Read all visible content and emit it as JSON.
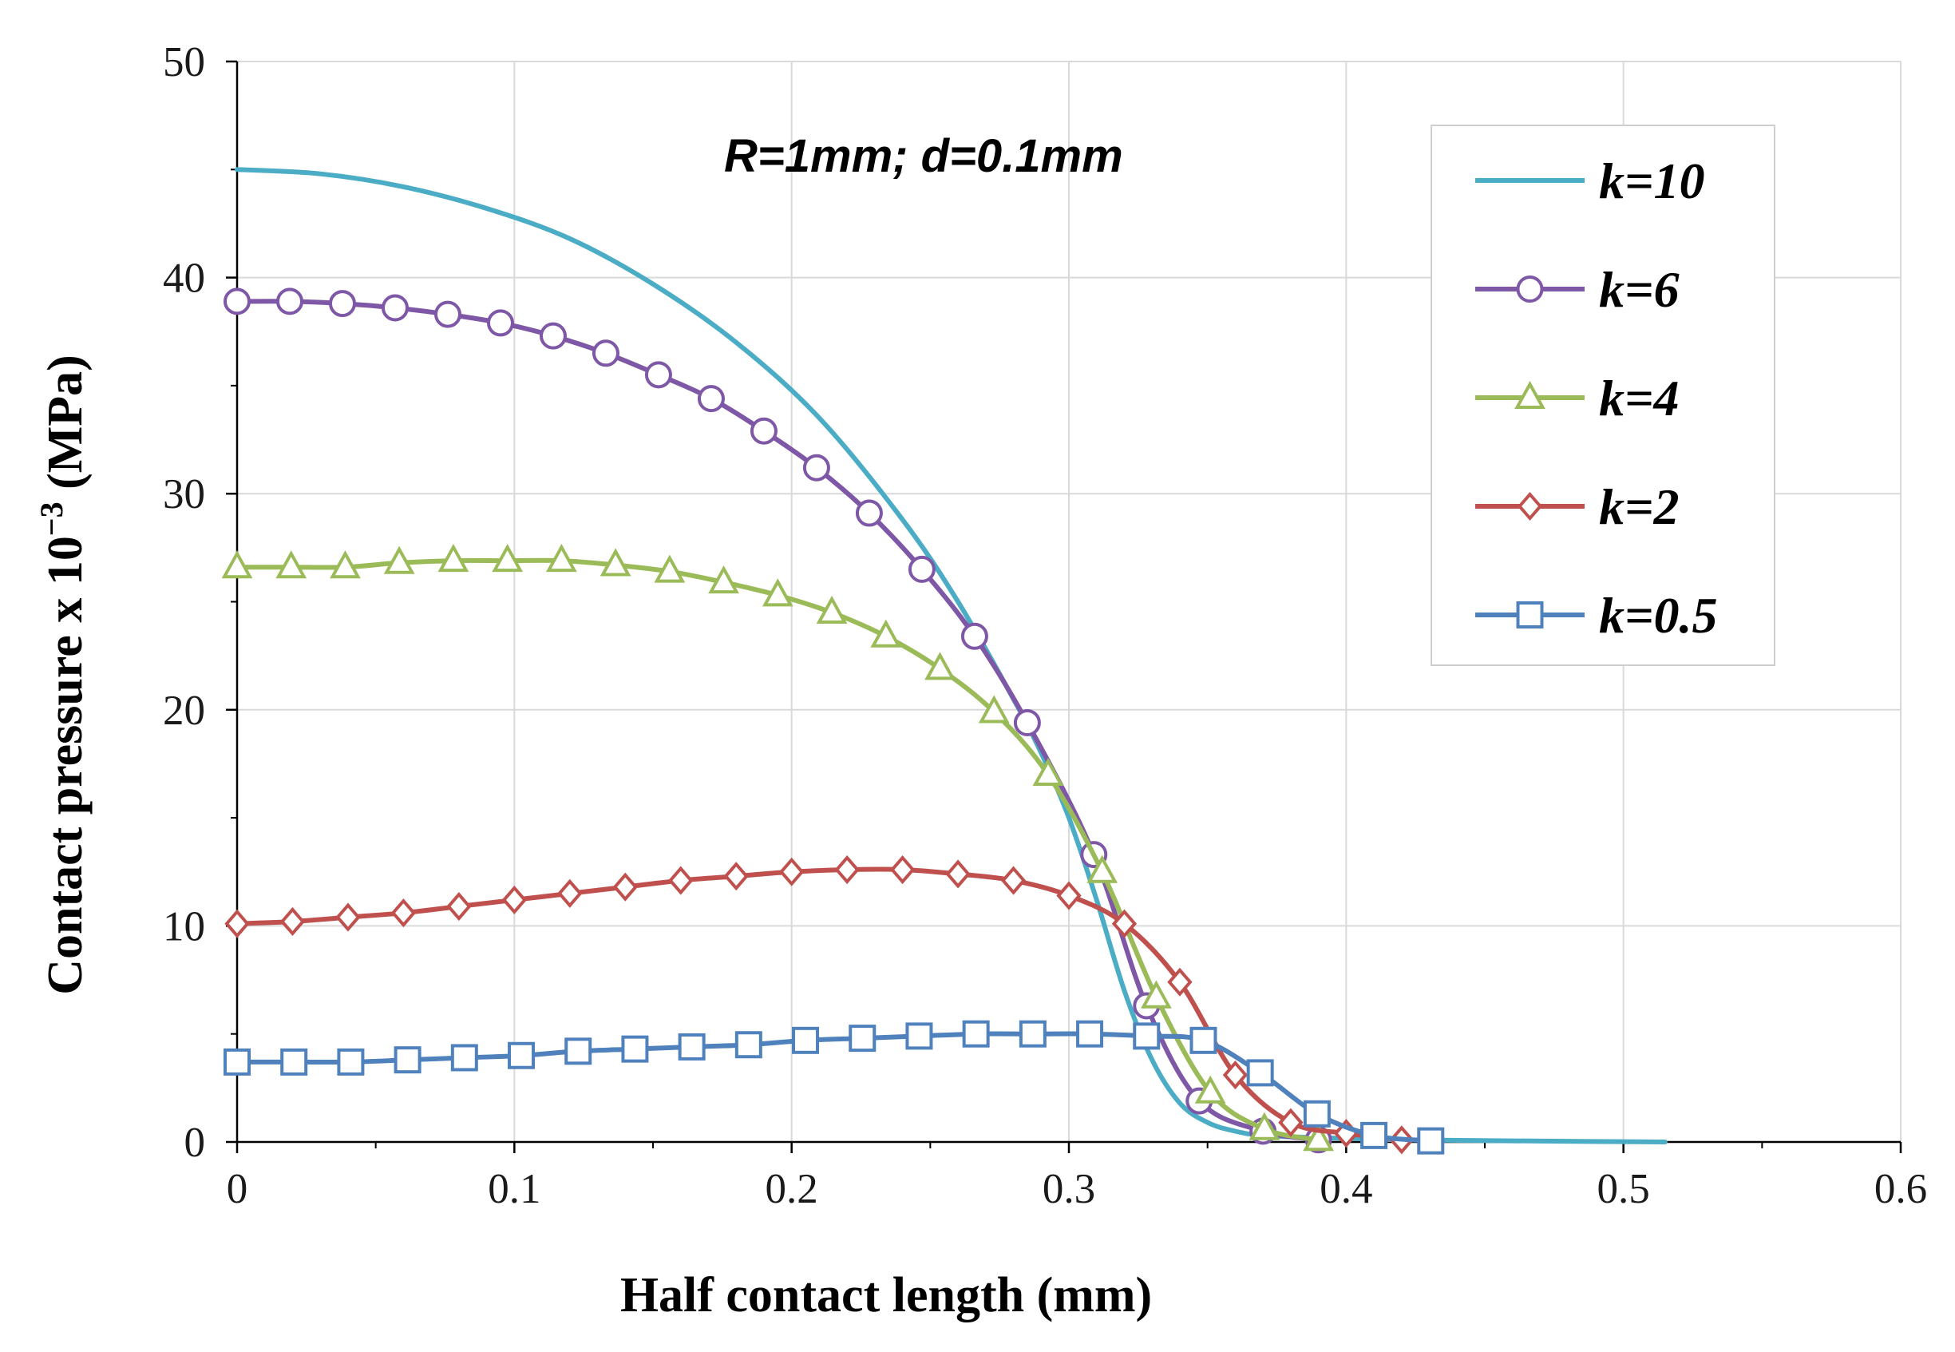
{
  "chart_data": {
    "type": "line",
    "title": "",
    "annotation": "R=1mm; d=0.1mm",
    "xlabel": "Half contact length (mm)",
    "ylabel": "Contact pressure x 10",
    "ylabel_exponent": "−3",
    "ylabel_unit": " (MPa)",
    "xlim": [
      0,
      0.6
    ],
    "ylim": [
      0,
      50
    ],
    "xticks": [
      0,
      0.1,
      0.2,
      0.3,
      0.4,
      0.5,
      0.6
    ],
    "xtick_labels": [
      "0",
      "0.1",
      "0.2",
      "0.3",
      "0.4",
      "0.5",
      "0.6"
    ],
    "yticks": [
      0,
      10,
      20,
      30,
      40,
      50
    ],
    "ytick_labels": [
      "0",
      "10",
      "20",
      "30",
      "40",
      "50"
    ],
    "grid": true,
    "legend_position": "top-right",
    "series": [
      {
        "name": "k=10",
        "color": "#4bacc6",
        "marker": "none",
        "x": [
          0,
          0.03,
          0.06,
          0.09,
          0.12,
          0.15,
          0.18,
          0.21,
          0.24,
          0.26,
          0.28,
          0.29,
          0.3,
          0.31,
          0.32,
          0.33,
          0.34,
          0.35,
          0.36,
          0.37,
          0.39,
          0.42,
          0.46,
          0.515
        ],
        "y": [
          45,
          44.8,
          44.2,
          43.2,
          41.8,
          39.7,
          37.0,
          33.5,
          28.8,
          25.0,
          20.5,
          18.0,
          15.0,
          11.2,
          7.0,
          3.8,
          1.8,
          0.9,
          0.5,
          0.3,
          0.2,
          0.1,
          0.05,
          0
        ]
      },
      {
        "name": "k=6",
        "color": "#7e57a6",
        "marker": "circle",
        "x": [
          0,
          0.019,
          0.038,
          0.057,
          0.076,
          0.095,
          0.114,
          0.133,
          0.152,
          0.171,
          0.19,
          0.209,
          0.228,
          0.247,
          0.266,
          0.285,
          0.309,
          0.328,
          0.347,
          0.37,
          0.39
        ],
        "y": [
          38.9,
          38.9,
          38.8,
          38.6,
          38.3,
          37.9,
          37.3,
          36.5,
          35.5,
          34.4,
          32.9,
          31.2,
          29.1,
          26.5,
          23.4,
          19.4,
          13.3,
          6.3,
          1.9,
          0.5,
          0.1
        ]
      },
      {
        "name": "k=4",
        "color": "#9bbb59",
        "marker": "triangle",
        "x": [
          0,
          0.0195,
          0.039,
          0.0585,
          0.078,
          0.0975,
          0.117,
          0.1365,
          0.156,
          0.1755,
          0.195,
          0.2145,
          0.234,
          0.2535,
          0.273,
          0.2925,
          0.312,
          0.3315,
          0.351,
          0.3705,
          0.39
        ],
        "y": [
          26.6,
          26.6,
          26.6,
          26.8,
          26.9,
          26.9,
          26.9,
          26.7,
          26.4,
          25.9,
          25.3,
          24.5,
          23.4,
          21.9,
          19.9,
          17.0,
          12.5,
          6.7,
          2.3,
          0.6,
          0.1
        ]
      },
      {
        "name": "k=2",
        "color": "#c0504d",
        "marker": "diamond",
        "x": [
          0,
          0.02,
          0.04,
          0.06,
          0.08,
          0.1,
          0.12,
          0.14,
          0.16,
          0.18,
          0.2,
          0.22,
          0.24,
          0.26,
          0.28,
          0.3,
          0.32,
          0.34,
          0.36,
          0.38,
          0.4,
          0.42
        ],
        "y": [
          10.1,
          10.2,
          10.4,
          10.6,
          10.9,
          11.2,
          11.5,
          11.8,
          12.1,
          12.3,
          12.5,
          12.6,
          12.6,
          12.4,
          12.1,
          11.4,
          10.1,
          7.4,
          3.1,
          0.9,
          0.4,
          0.1
        ]
      },
      {
        "name": "k=0.5",
        "color": "#4f81bd",
        "marker": "square",
        "x": [
          0,
          0.0205,
          0.041,
          0.0615,
          0.082,
          0.1025,
          0.123,
          0.1435,
          0.164,
          0.1845,
          0.205,
          0.2255,
          0.246,
          0.2665,
          0.287,
          0.3075,
          0.328,
          0.3485,
          0.369,
          0.3895,
          0.41,
          0.4305
        ],
        "y": [
          3.7,
          3.7,
          3.7,
          3.8,
          3.9,
          4.0,
          4.2,
          4.3,
          4.4,
          4.5,
          4.7,
          4.8,
          4.9,
          5.0,
          5.0,
          5.0,
          4.9,
          4.7,
          3.2,
          1.3,
          0.3,
          0.05
        ]
      }
    ]
  }
}
